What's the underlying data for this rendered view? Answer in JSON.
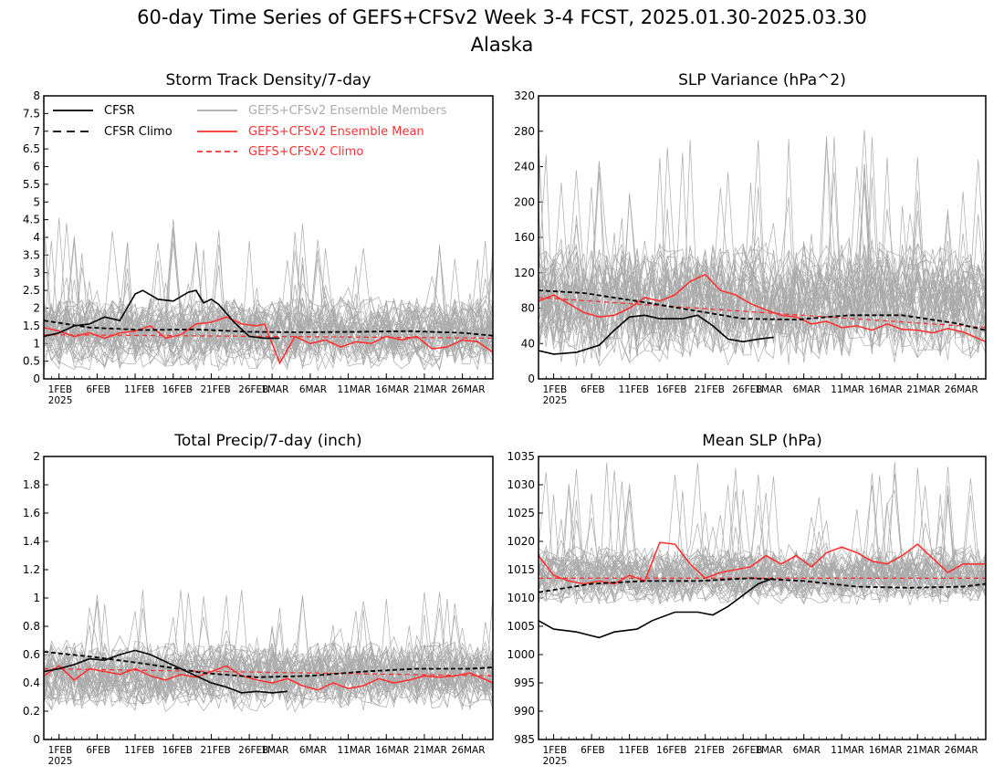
{
  "figure": {
    "title_line1": "60-day Time Series of GEFS+CFSv2 Week 3-4 FCST, 2025.01.30-2025.03.30",
    "title_line2": "Alaska"
  },
  "colors": {
    "cfsr": "#000000",
    "ensemble_members": "#aaaaaa",
    "ensemble_mean": "#ff3333",
    "gefs_climo": "#ff3333"
  },
  "x_axis": {
    "start_date": "2025-01-30",
    "end_date": "2025-03-30",
    "tick_labels": [
      "1FEB",
      "6FEB",
      "11FEB",
      "16FEB",
      "21FEB",
      "26FEB",
      "1MAR",
      "6MAR",
      "11MAR",
      "16MAR",
      "21MAR",
      "26MAR"
    ],
    "tick_dates": [
      "2025-02-01",
      "2025-02-06",
      "2025-02-11",
      "2025-02-16",
      "2025-02-21",
      "2025-02-26",
      "2025-03-01",
      "2025-03-06",
      "2025-03-11",
      "2025-03-16",
      "2025-03-21",
      "2025-03-26"
    ],
    "year_label": "2025"
  },
  "legend": {
    "cfsr": "CFSR",
    "cfsr_climo": "CFSR Climo",
    "members": "GEFS+CFSv2 Ensemble Members",
    "mean": "GEFS+CFSv2 Ensemble Mean",
    "gefs_climo": "GEFS+CFSv2 Climo"
  },
  "chart_data": [
    {
      "type": "line",
      "title": "Storm Track Density/7-day",
      "ylim": [
        0,
        8
      ],
      "yticks": [
        0,
        0.5,
        1,
        1.5,
        2,
        2.5,
        3,
        3.5,
        4,
        4.5,
        5,
        5.5,
        6,
        6.5,
        7,
        7.5,
        8
      ],
      "ytick_labels": [
        "0",
        "0.5",
        "1",
        "1.5",
        "2",
        "2.5",
        "3",
        "3.5",
        "4",
        "4.5",
        "5",
        "5.5",
        "6",
        "6.5",
        "7",
        "7.5",
        "8"
      ],
      "cfsr": {
        "x": [
          "2025-01-30",
          "2025-02-01",
          "2025-02-03",
          "2025-02-05",
          "2025-02-07",
          "2025-02-09",
          "2025-02-11",
          "2025-02-12",
          "2025-02-14",
          "2025-02-16",
          "2025-02-18",
          "2025-02-19",
          "2025-02-20",
          "2025-02-21",
          "2025-02-22",
          "2025-02-24",
          "2025-02-26",
          "2025-02-28",
          "2025-03-02"
        ],
        "y": [
          1.2,
          1.3,
          1.5,
          1.55,
          1.75,
          1.65,
          2.4,
          2.5,
          2.25,
          2.2,
          2.45,
          2.5,
          2.15,
          2.25,
          2.1,
          1.6,
          1.2,
          1.15,
          1.15
        ]
      },
      "cfsr_climo": {
        "x": [
          "2025-01-30",
          "2025-02-05",
          "2025-02-12",
          "2025-02-19",
          "2025-02-26",
          "2025-03-05",
          "2025-03-12",
          "2025-03-19",
          "2025-03-26",
          "2025-03-30"
        ],
        "y": [
          1.65,
          1.45,
          1.38,
          1.4,
          1.33,
          1.32,
          1.33,
          1.35,
          1.3,
          1.22
        ]
      },
      "ensemble_mean": {
        "x": [
          "2025-01-30",
          "2025-02-01",
          "2025-02-03",
          "2025-02-05",
          "2025-02-07",
          "2025-02-09",
          "2025-02-11",
          "2025-02-13",
          "2025-02-15",
          "2025-02-17",
          "2025-02-19",
          "2025-02-21",
          "2025-02-23",
          "2025-02-25",
          "2025-02-27",
          "2025-02-28",
          "2025-03-02",
          "2025-03-04",
          "2025-03-06",
          "2025-03-08",
          "2025-03-10",
          "2025-03-12",
          "2025-03-14",
          "2025-03-16",
          "2025-03-18",
          "2025-03-20",
          "2025-03-22",
          "2025-03-24",
          "2025-03-26",
          "2025-03-28",
          "2025-03-30"
        ],
        "y": [
          1.45,
          1.35,
          1.2,
          1.3,
          1.15,
          1.3,
          1.35,
          1.5,
          1.15,
          1.25,
          1.55,
          1.6,
          1.75,
          1.55,
          1.5,
          1.55,
          0.45,
          1.2,
          1.0,
          1.1,
          0.9,
          1.05,
          1.0,
          1.2,
          1.1,
          1.2,
          0.85,
          0.9,
          1.1,
          1.05,
          0.75
        ]
      },
      "gefs_climo": {
        "x": [
          "2025-01-30",
          "2025-03-30"
        ],
        "y": [
          1.25,
          1.15
        ]
      },
      "members_envelope": {
        "center": 1.3,
        "spread": 0.9,
        "peak": 4.6
      }
    },
    {
      "type": "line",
      "title": "SLP Variance (hPa^2)",
      "ylim": [
        0,
        320
      ],
      "yticks": [
        0,
        40,
        80,
        120,
        160,
        200,
        240,
        280,
        320
      ],
      "ytick_labels": [
        "0",
        "40",
        "80",
        "120",
        "160",
        "200",
        "240",
        "280",
        "320"
      ],
      "cfsr": {
        "x": [
          "2025-01-30",
          "2025-02-01",
          "2025-02-04",
          "2025-02-07",
          "2025-02-09",
          "2025-02-11",
          "2025-02-13",
          "2025-02-15",
          "2025-02-18",
          "2025-02-20",
          "2025-02-22",
          "2025-02-24",
          "2025-02-26",
          "2025-02-28",
          "2025-03-02"
        ],
        "y": [
          32,
          28,
          30,
          38,
          55,
          70,
          72,
          68,
          68,
          72,
          60,
          45,
          42,
          45,
          47
        ]
      },
      "cfsr_climo": {
        "x": [
          "2025-01-30",
          "2025-02-05",
          "2025-02-12",
          "2025-02-19",
          "2025-02-26",
          "2025-03-05",
          "2025-03-12",
          "2025-03-19",
          "2025-03-26",
          "2025-03-30"
        ],
        "y": [
          100,
          97,
          88,
          78,
          68,
          67,
          72,
          72,
          63,
          55
        ]
      },
      "ensemble_mean": {
        "x": [
          "2025-01-30",
          "2025-02-01",
          "2025-02-03",
          "2025-02-05",
          "2025-02-07",
          "2025-02-09",
          "2025-02-11",
          "2025-02-13",
          "2025-02-15",
          "2025-02-17",
          "2025-02-19",
          "2025-02-21",
          "2025-02-23",
          "2025-02-25",
          "2025-02-27",
          "2025-03-01",
          "2025-03-03",
          "2025-03-05",
          "2025-03-07",
          "2025-03-09",
          "2025-03-11",
          "2025-03-13",
          "2025-03-15",
          "2025-03-17",
          "2025-03-19",
          "2025-03-21",
          "2025-03-23",
          "2025-03-25",
          "2025-03-27",
          "2025-03-30"
        ],
        "y": [
          88,
          95,
          85,
          75,
          70,
          72,
          80,
          92,
          88,
          95,
          110,
          118,
          100,
          95,
          85,
          78,
          72,
          70,
          62,
          65,
          58,
          60,
          55,
          62,
          56,
          55,
          52,
          57,
          53,
          42
        ]
      },
      "gefs_climo": {
        "x": [
          "2025-01-30",
          "2025-03-30"
        ],
        "y": [
          92,
          58
        ]
      },
      "members_envelope": {
        "center": 85,
        "spread": 60,
        "peak": 282
      }
    },
    {
      "type": "line",
      "title": "Total Precip/7-day (inch)",
      "ylim": [
        0,
        2
      ],
      "yticks": [
        0,
        0.2,
        0.4,
        0.6,
        0.8,
        1,
        1.2,
        1.4,
        1.6,
        1.8,
        2
      ],
      "ytick_labels": [
        "0",
        "0.2",
        "0.4",
        "0.6",
        "0.8",
        "1",
        "1.2",
        "1.4",
        "1.6",
        "1.8",
        "2"
      ],
      "cfsr": {
        "x": [
          "2025-01-30",
          "2025-02-01",
          "2025-02-03",
          "2025-02-05",
          "2025-02-07",
          "2025-02-09",
          "2025-02-11",
          "2025-02-13",
          "2025-02-15",
          "2025-02-17",
          "2025-02-19",
          "2025-02-21",
          "2025-02-23",
          "2025-02-25",
          "2025-02-27",
          "2025-03-01",
          "2025-03-03"
        ],
        "y": [
          0.48,
          0.5,
          0.53,
          0.57,
          0.56,
          0.6,
          0.63,
          0.6,
          0.55,
          0.5,
          0.45,
          0.4,
          0.37,
          0.33,
          0.34,
          0.33,
          0.34
        ]
      },
      "cfsr_climo": {
        "x": [
          "2025-01-30",
          "2025-02-06",
          "2025-02-13",
          "2025-02-20",
          "2025-02-27",
          "2025-03-06",
          "2025-03-13",
          "2025-03-20",
          "2025-03-27",
          "2025-03-30"
        ],
        "y": [
          0.62,
          0.58,
          0.53,
          0.47,
          0.44,
          0.45,
          0.48,
          0.5,
          0.5,
          0.51
        ]
      },
      "ensemble_mean": {
        "x": [
          "2025-01-30",
          "2025-02-01",
          "2025-02-03",
          "2025-02-05",
          "2025-02-07",
          "2025-02-09",
          "2025-02-11",
          "2025-02-13",
          "2025-02-15",
          "2025-02-17",
          "2025-02-19",
          "2025-02-21",
          "2025-02-23",
          "2025-02-25",
          "2025-02-27",
          "2025-03-01",
          "2025-03-03",
          "2025-03-05",
          "2025-03-07",
          "2025-03-09",
          "2025-03-11",
          "2025-03-13",
          "2025-03-15",
          "2025-03-17",
          "2025-03-19",
          "2025-03-21",
          "2025-03-23",
          "2025-03-25",
          "2025-03-27",
          "2025-03-30"
        ],
        "y": [
          0.45,
          0.52,
          0.42,
          0.5,
          0.48,
          0.46,
          0.5,
          0.45,
          0.42,
          0.46,
          0.44,
          0.48,
          0.52,
          0.45,
          0.42,
          0.4,
          0.43,
          0.38,
          0.35,
          0.4,
          0.36,
          0.38,
          0.43,
          0.4,
          0.42,
          0.45,
          0.44,
          0.45,
          0.47,
          0.4
        ]
      },
      "gefs_climo": {
        "x": [
          "2025-01-30",
          "2025-03-30"
        ],
        "y": [
          0.5,
          0.45
        ]
      },
      "members_envelope": {
        "center": 0.45,
        "spread": 0.22,
        "peak": 1.06
      }
    },
    {
      "type": "line",
      "title": "Mean SLP (hPa)",
      "ylim": [
        985,
        1035
      ],
      "yticks": [
        985,
        990,
        995,
        1000,
        1005,
        1010,
        1015,
        1020,
        1025,
        1030,
        1035
      ],
      "ytick_labels": [
        "985",
        "990",
        "995",
        "1000",
        "1005",
        "1010",
        "1015",
        "1020",
        "1025",
        "1030",
        "1035"
      ],
      "cfsr": {
        "x": [
          "2025-01-30",
          "2025-02-01",
          "2025-02-04",
          "2025-02-07",
          "2025-02-09",
          "2025-02-12",
          "2025-02-14",
          "2025-02-17",
          "2025-02-20",
          "2025-02-22",
          "2025-02-24",
          "2025-02-26",
          "2025-02-28",
          "2025-03-02"
        ],
        "y": [
          1006,
          1004.5,
          1004,
          1003,
          1004,
          1004.5,
          1006,
          1007.5,
          1007.5,
          1007,
          1008.5,
          1010.5,
          1012.5,
          1013.5
        ]
      },
      "cfsr_climo": {
        "x": [
          "2025-01-30",
          "2025-02-06",
          "2025-02-13",
          "2025-02-20",
          "2025-02-27",
          "2025-03-06",
          "2025-03-13",
          "2025-03-20",
          "2025-03-27",
          "2025-03-30"
        ],
        "y": [
          1011,
          1012.5,
          1013,
          1013,
          1013.5,
          1013,
          1012,
          1011.8,
          1012,
          1012.5
        ]
      },
      "ensemble_mean": {
        "x": [
          "2025-01-30",
          "2025-02-01",
          "2025-02-03",
          "2025-02-05",
          "2025-02-07",
          "2025-02-09",
          "2025-02-11",
          "2025-02-13",
          "2025-02-15",
          "2025-02-17",
          "2025-02-19",
          "2025-02-21",
          "2025-02-23",
          "2025-02-25",
          "2025-02-27",
          "2025-03-01",
          "2025-03-03",
          "2025-03-05",
          "2025-03-07",
          "2025-03-09",
          "2025-03-11",
          "2025-03-13",
          "2025-03-15",
          "2025-03-17",
          "2025-03-19",
          "2025-03-21",
          "2025-03-23",
          "2025-03-25",
          "2025-03-27",
          "2025-03-30"
        ],
        "y": [
          1017.5,
          1014,
          1013,
          1012.5,
          1013,
          1012.5,
          1014,
          1013,
          1019.8,
          1019.5,
          1016,
          1013.5,
          1014.5,
          1015,
          1015.5,
          1017.5,
          1016,
          1017.5,
          1015.5,
          1018,
          1019,
          1018,
          1016.5,
          1016,
          1017.5,
          1019.5,
          1017,
          1014.5,
          1016,
          1016
        ]
      },
      "gefs_climo": {
        "x": [
          "2025-01-30",
          "2025-03-30"
        ],
        "y": [
          1013.5,
          1013.5
        ]
      },
      "members_envelope": {
        "center": 1014,
        "spread": 4.5,
        "peak": 1034
      }
    }
  ]
}
